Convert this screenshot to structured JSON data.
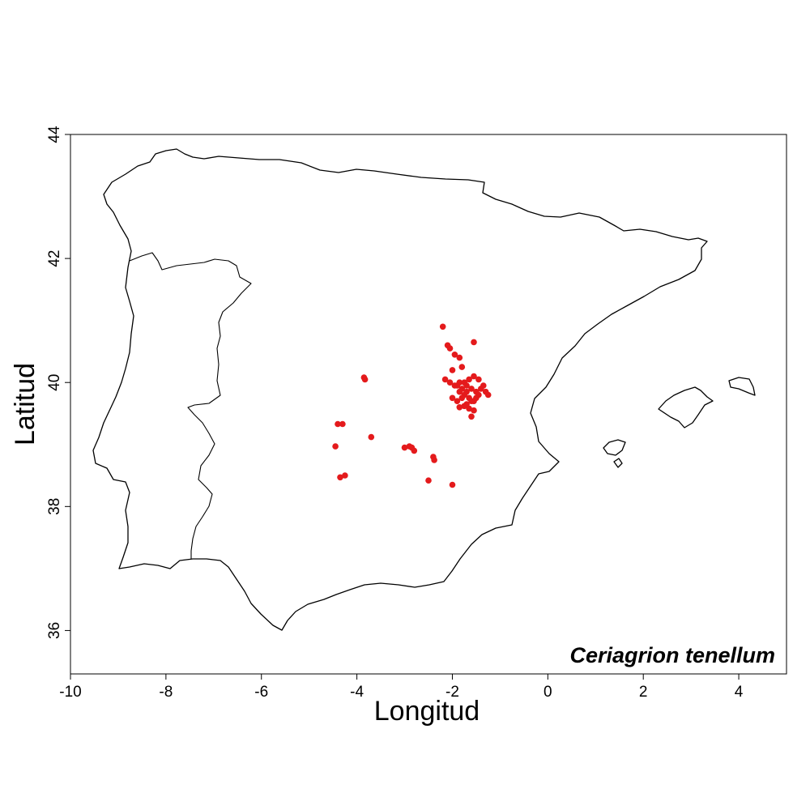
{
  "chart_data": {
    "type": "scatter",
    "title": "",
    "species": "Ceriagrion tenellum",
    "xlabel": "Longitud",
    "ylabel": "Latitud",
    "xlim": [
      -10,
      5
    ],
    "ylim": [
      35.3,
      44
    ],
    "xticks": [
      -10,
      -8,
      -6,
      -4,
      -2,
      0,
      2,
      4
    ],
    "yticks": [
      36,
      38,
      40,
      42,
      44
    ],
    "grid": false,
    "point_color": "#e41a1c",
    "x": [
      -2.2,
      -2.1,
      -2.05,
      -1.55,
      -1.95,
      -1.85,
      -2.0,
      -1.8,
      -2.15,
      -2.05,
      -1.95,
      -1.85,
      -1.75,
      -1.65,
      -1.55,
      -1.45,
      -1.35,
      -1.25,
      -1.9,
      -1.8,
      -1.7,
      -1.6,
      -1.5,
      -1.4,
      -1.3,
      -1.85,
      -1.75,
      -1.65,
      -1.55,
      -1.45,
      -1.7,
      -1.6,
      -1.5,
      -1.8,
      -1.9,
      -2.0,
      -1.55,
      -1.6,
      -1.7,
      -1.85,
      -1.75,
      -1.65,
      -3.85,
      -3.83,
      -4.4,
      -4.3,
      -3.7,
      -4.45,
      -4.35,
      -4.25,
      -3.0,
      -2.9,
      -2.85,
      -2.8,
      -2.4,
      -2.38,
      -2.5,
      -2.0
    ],
    "y": [
      40.9,
      40.6,
      40.55,
      40.65,
      40.45,
      40.4,
      40.2,
      40.25,
      40.05,
      40.0,
      39.95,
      40.0,
      40.0,
      40.05,
      40.1,
      40.05,
      39.95,
      39.8,
      39.95,
      39.9,
      39.95,
      39.9,
      39.85,
      39.9,
      39.85,
      39.85,
      39.8,
      39.75,
      39.7,
      39.8,
      39.85,
      39.7,
      39.75,
      39.75,
      39.7,
      39.75,
      39.55,
      39.45,
      39.65,
      39.6,
      39.62,
      39.58,
      40.08,
      40.05,
      39.33,
      39.33,
      39.12,
      38.97,
      38.47,
      38.5,
      38.95,
      38.97,
      38.95,
      38.9,
      38.8,
      38.75,
      38.42,
      38.35
    ]
  }
}
